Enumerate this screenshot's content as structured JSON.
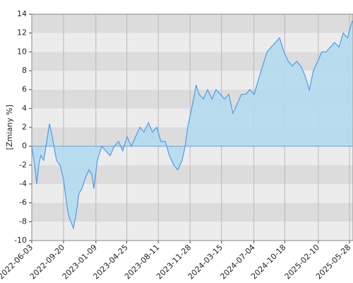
{
  "chart_data": {
    "type": "area",
    "ylabel": "[Zmiany %]",
    "x": [
      "2022-06-03",
      "2022-06-15",
      "2022-06-20",
      "2022-06-27",
      "2022-07-04",
      "2022-07-14",
      "2022-07-24",
      "2022-08-03",
      "2022-08-12",
      "2022-08-27",
      "2022-09-08",
      "2022-09-20",
      "2022-09-30",
      "2022-10-09",
      "2022-10-24",
      "2022-11-03",
      "2022-11-12",
      "2022-11-22",
      "2022-12-02",
      "2022-12-16",
      "2022-12-26",
      "2023-01-02",
      "2023-01-14",
      "2023-01-29",
      "2023-02-12",
      "2023-02-27",
      "2023-03-13",
      "2023-03-28",
      "2023-04-11",
      "2023-04-26",
      "2023-05-11",
      "2023-05-25",
      "2023-06-09",
      "2023-06-23",
      "2023-07-08",
      "2023-07-22",
      "2023-08-06",
      "2023-08-20",
      "2023-09-04",
      "2023-09-18",
      "2023-10-03",
      "2023-10-17",
      "2023-11-01",
      "2023-11-11",
      "2023-11-20",
      "2023-11-30",
      "2023-12-10",
      "2023-12-19",
      "2023-12-29",
      "2024-01-13",
      "2024-01-27",
      "2024-02-11",
      "2024-02-25",
      "2024-03-11",
      "2024-03-25",
      "2024-04-09",
      "2024-04-23",
      "2024-05-08",
      "2024-05-22",
      "2024-06-06",
      "2024-06-20",
      "2024-07-05",
      "2024-07-19",
      "2024-08-03",
      "2024-08-18",
      "2024-09-01",
      "2024-09-16",
      "2024-09-30",
      "2024-10-15",
      "2024-10-30",
      "2024-11-13",
      "2024-11-28",
      "2024-12-12",
      "2024-12-26",
      "2025-01-10",
      "2025-01-24",
      "2025-02-08",
      "2025-02-22",
      "2025-03-09",
      "2025-03-23",
      "2025-04-07",
      "2025-04-22",
      "2025-05-06",
      "2025-05-21",
      "2025-05-30",
      "2025-06-07"
    ],
    "series": [
      {
        "color": "#4f9be8",
        "fill": "#b3dcee",
        "values": [
          0,
          -2.5,
          -4,
          -2,
          -1,
          -1.5,
          0.5,
          2.4,
          1,
          -1.5,
          -2,
          -3.5,
          -6,
          -7.5,
          -8.7,
          -7,
          -5,
          -4.5,
          -3.5,
          -2.5,
          -3,
          -4.5,
          -1.5,
          0,
          -0.5,
          -1,
          0,
          0.5,
          -0.5,
          1,
          0,
          1,
          2,
          1.5,
          2.5,
          1.5,
          2,
          0.5,
          0.5,
          -1,
          -2,
          -2.5,
          -1.5,
          0,
          2,
          3.5,
          5,
          6.5,
          5.5,
          5,
          6,
          5,
          6,
          5.5,
          5,
          5.5,
          3.5,
          4.5,
          5.5,
          5.5,
          6,
          5.5,
          7,
          8.5,
          10,
          10.5,
          11,
          11.5,
          10,
          9,
          8.5,
          9,
          8.5,
          7.5,
          6,
          8,
          9,
          10,
          10,
          10.5,
          11,
          10.5,
          12,
          11.5,
          12.5,
          13.3
        ]
      }
    ],
    "xlim": [
      "2022-06-03",
      "2025-06-09"
    ],
    "xticks": [
      "2022-06-03",
      "2022-09-20",
      "2023-01-09",
      "2023-04-25",
      "2023-08-11",
      "2023-11-28",
      "2024-03-15",
      "2024-07-04",
      "2024-10-18",
      "2025-02-10",
      "2025-05-28"
    ],
    "ylim": [
      -10,
      14
    ],
    "yticks": [
      -10,
      -8,
      -6,
      -4,
      -2,
      0,
      2,
      4,
      6,
      8,
      10,
      12,
      14
    ],
    "grid": true
  }
}
